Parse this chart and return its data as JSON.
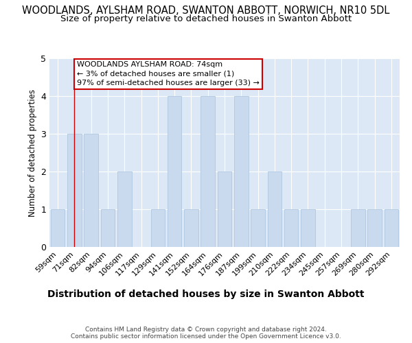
{
  "title": "WOODLANDS, AYLSHAM ROAD, SWANTON ABBOTT, NORWICH, NR10 5DL",
  "subtitle": "Size of property relative to detached houses in Swanton Abbott",
  "xlabel": "Distribution of detached houses by size in Swanton Abbott",
  "ylabel": "Number of detached properties",
  "categories": [
    "59sqm",
    "71sqm",
    "82sqm",
    "94sqm",
    "106sqm",
    "117sqm",
    "129sqm",
    "141sqm",
    "152sqm",
    "164sqm",
    "176sqm",
    "187sqm",
    "199sqm",
    "210sqm",
    "222sqm",
    "234sqm",
    "245sqm",
    "257sqm",
    "269sqm",
    "280sqm",
    "292sqm"
  ],
  "values": [
    1,
    3,
    3,
    1,
    2,
    0,
    1,
    4,
    1,
    4,
    2,
    4,
    1,
    2,
    1,
    1,
    0,
    0,
    1,
    1,
    1
  ],
  "bar_color": "#c9d9ee",
  "bar_edge_color": "#b0c8e0",
  "vline_x_index": 1,
  "vline_color": "#cc0000",
  "annotation_line1": "WOODLANDS AYLSHAM ROAD: 74sqm",
  "annotation_line2": "← 3% of detached houses are smaller (1)",
  "annotation_line3": "97% of semi-detached houses are larger (33) →",
  "annotation_box_edgecolor": "#cc0000",
  "ylim": [
    0,
    5
  ],
  "yticks": [
    0,
    1,
    2,
    3,
    4,
    5
  ],
  "bg_color": "#ffffff",
  "plot_bg_color": "#dce8f5",
  "grid_color": "#ffffff",
  "footer": "Contains HM Land Registry data © Crown copyright and database right 2024.\nContains public sector information licensed under the Open Government Licence v3.0.",
  "title_fontsize": 10.5,
  "subtitle_fontsize": 9.5,
  "xlabel_fontsize": 10,
  "ylabel_fontsize": 8.5,
  "tick_fontsize": 8,
  "annotation_fontsize": 8,
  "footer_fontsize": 6.5
}
